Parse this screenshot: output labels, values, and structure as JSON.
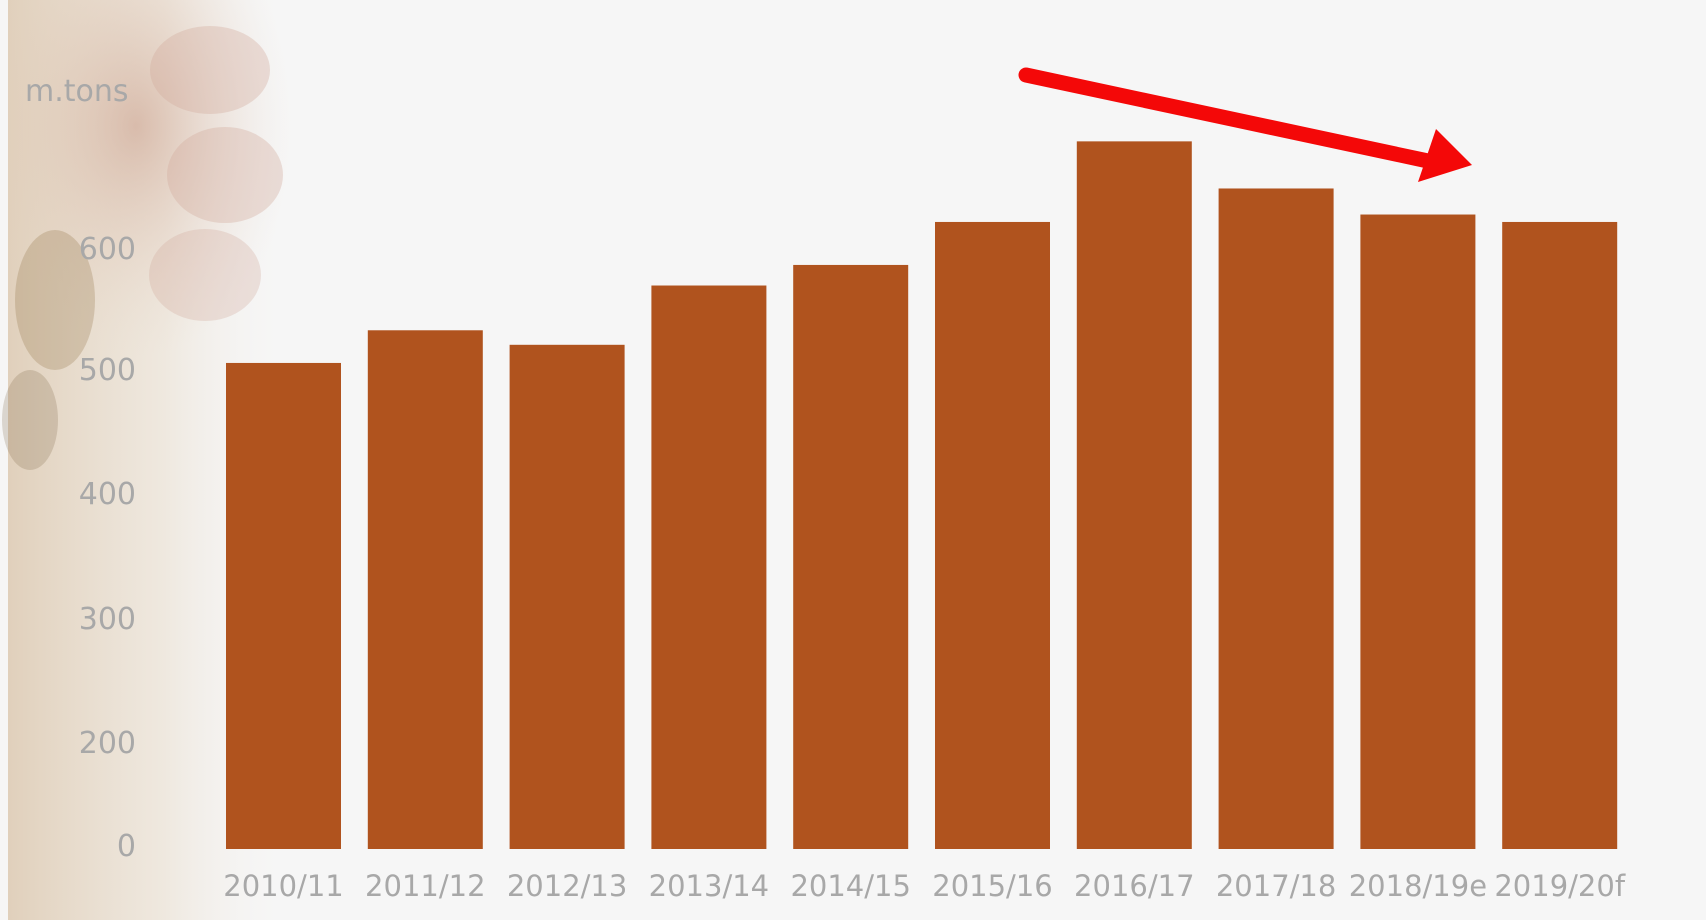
{
  "chart_data": {
    "type": "bar",
    "unit_label": "m.tons",
    "categories": [
      "2010/11",
      "2011/12",
      "2012/13",
      "2013/14",
      "2014/15",
      "2015/16",
      "2016/17",
      "2017/18",
      "2018/19e",
      "2019/20f"
    ],
    "values": [
      505,
      532,
      520,
      569,
      586,
      621,
      686,
      648,
      627,
      621
    ],
    "y_ticks": [
      0,
      200,
      300,
      400,
      500,
      600
    ],
    "annotation": "downward-trend-arrow",
    "grid": false,
    "legend": "none",
    "colors": {
      "bar": "#b0531e",
      "arrow": "#f40808",
      "tick_text": "#a8a8a8",
      "background": "#f6f6f6"
    }
  }
}
